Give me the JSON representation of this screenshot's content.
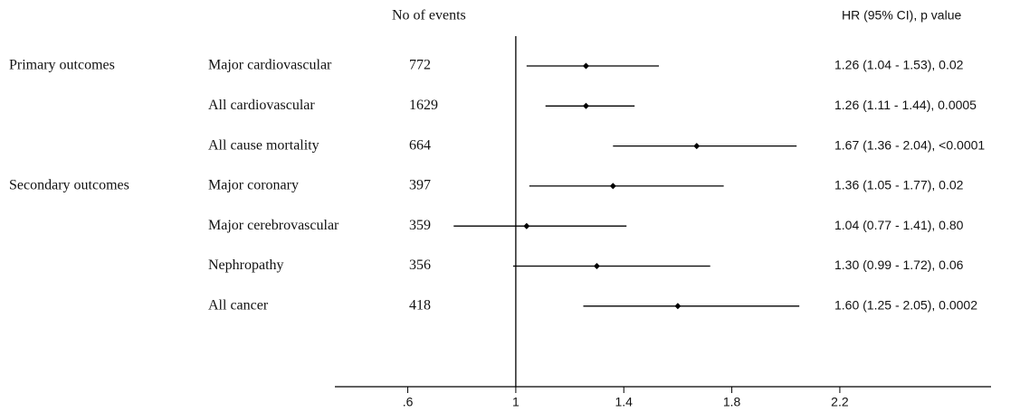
{
  "chart_data": {
    "type": "forest",
    "headers": {
      "events": "No of events",
      "estimate": "HR (95% CI), p value"
    },
    "row_groups": [
      "Primary outcomes",
      null,
      null,
      "Secondary outcomes",
      null,
      null,
      null
    ],
    "categories": [
      "Major cardiovascular",
      "All cardiovascular",
      "All cause mortality",
      "Major coronary",
      "Major cerebrovascular",
      "Nephropathy",
      "All cancer"
    ],
    "events": [
      772,
      1629,
      664,
      397,
      359,
      356,
      418
    ],
    "values": [
      1.26,
      1.26,
      1.67,
      1.36,
      1.04,
      1.3,
      1.6
    ],
    "lower": [
      1.04,
      1.11,
      1.36,
      1.05,
      0.77,
      0.99,
      1.25
    ],
    "upper": [
      1.53,
      1.44,
      2.04,
      1.77,
      1.41,
      1.72,
      2.05
    ],
    "value_labels": [
      "1.26 (1.04 - 1.53), 0.02",
      "1.26 (1.11 - 1.44), 0.0005",
      "1.67 (1.36 - 2.04), <0.0001",
      "1.36 (1.05 - 1.77), 0.02",
      "1.04 (0.77 - 1.41), 0.80",
      "1.30 (0.99 - 1.72), 0.06",
      "1.60 (1.25 - 2.05), 0.0002"
    ],
    "reference_line": 1,
    "xlim": [
      0.33,
      2.76
    ],
    "xticks": [
      {
        "value": 0.6,
        "label": ".6"
      },
      1,
      1.4,
      1.8,
      2.2
    ],
    "color": "#000000"
  }
}
